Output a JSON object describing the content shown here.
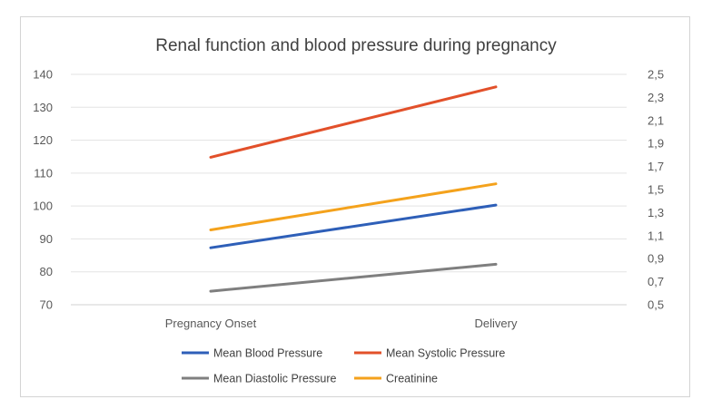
{
  "chart_data": {
    "type": "line",
    "title": "Renal function and blood pressure during pregnancy",
    "categories": [
      "Pregnancy Onset",
      "Delivery"
    ],
    "y_left": {
      "ylim": [
        70,
        140
      ],
      "ticks": [
        "70",
        "80",
        "90",
        "100",
        "110",
        "120",
        "130",
        "140"
      ]
    },
    "y_right": {
      "ylim": [
        0.5,
        2.5
      ],
      "ticks": [
        "0,5",
        "0,7",
        "0,9",
        "1,1",
        "1,3",
        "1,5",
        "1,7",
        "1,9",
        "2,1",
        "2,3",
        "2,5"
      ]
    },
    "gridlines": true,
    "legend_position": "bottom",
    "series": [
      {
        "name": "Mean Blood Pressure",
        "axis": "left",
        "color": "#2E5FB8",
        "values": [
          87.3,
          100.3
        ]
      },
      {
        "name": "Mean Systolic Pressure",
        "axis": "left",
        "color": "#E2502A",
        "values": [
          114.8,
          136.2
        ]
      },
      {
        "name": "Mean Diastolic Pressure",
        "axis": "left",
        "color": "#7F7F7F",
        "values": [
          74.1,
          82.3
        ]
      },
      {
        "name": "Creatinine",
        "axis": "right",
        "color": "#F4A21C",
        "values": [
          1.15,
          1.55
        ]
      }
    ]
  }
}
